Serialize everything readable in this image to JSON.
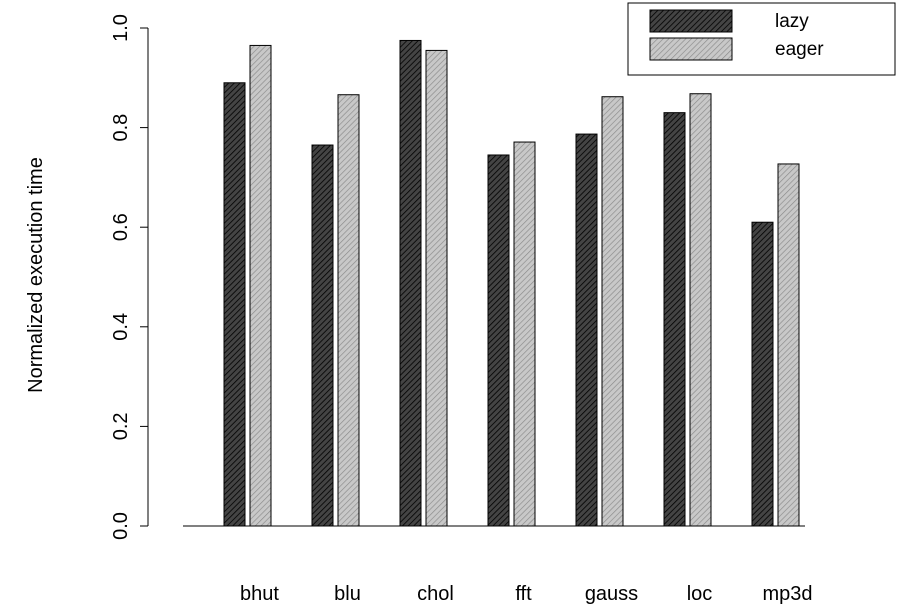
{
  "chart_data": {
    "type": "bar",
    "ylabel": "Normalized execution time",
    "xlabel": "",
    "ylim": [
      0,
      1.0
    ],
    "yticks": [
      0.0,
      0.2,
      0.4,
      0.6,
      0.8,
      1.0
    ],
    "ytick_labels": [
      "0.0",
      "0.2",
      "0.4",
      "0.6",
      "0.8",
      "1.0"
    ],
    "categories": [
      "bhut",
      "blu",
      "chol",
      "fft",
      "gauss",
      "loc",
      "mp3d"
    ],
    "series": [
      {
        "name": "lazy",
        "values": [
          0.89,
          0.765,
          0.975,
          0.745,
          0.787,
          0.83,
          0.61
        ],
        "color": "#444444"
      },
      {
        "name": "eager",
        "values": [
          0.965,
          0.866,
          0.955,
          0.771,
          0.862,
          0.868,
          0.727
        ],
        "color": "#b5b5b5"
      }
    ],
    "legend_position": "top-right",
    "grid": false
  }
}
